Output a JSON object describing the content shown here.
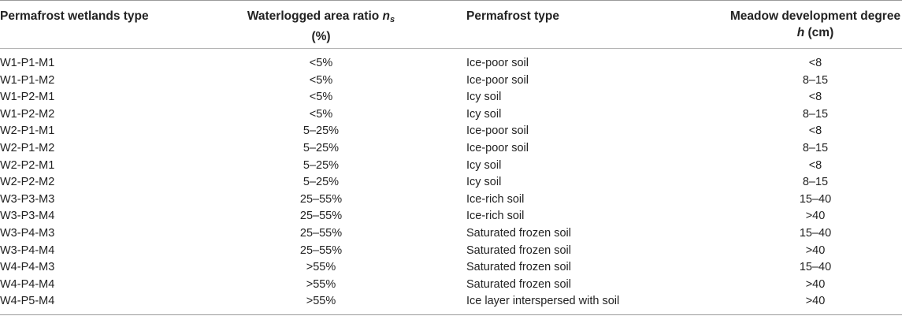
{
  "table": {
    "headers": {
      "col1": "Permafrost wetlands type",
      "col2_line1": "Waterlogged area ratio ",
      "col2_symbol": "n",
      "col2_subscript": "s",
      "col2_line2": "(%)",
      "col3": "Permafrost type",
      "col4_line1": "Meadow development degree",
      "col4_symbol": "h",
      "col4_unit": " (cm)"
    },
    "rows": [
      {
        "type": "W1-P1-M1",
        "ratio": "<5%",
        "permafrost": "Ice-poor soil",
        "meadow": "<8"
      },
      {
        "type": "W1-P1-M2",
        "ratio": "<5%",
        "permafrost": "Ice-poor soil",
        "meadow": "8–15"
      },
      {
        "type": "W1-P2-M1",
        "ratio": "<5%",
        "permafrost": "Icy soil",
        "meadow": "<8"
      },
      {
        "type": "W1-P2-M2",
        "ratio": "<5%",
        "permafrost": "Icy soil",
        "meadow": "8–15"
      },
      {
        "type": "W2-P1-M1",
        "ratio": "5–25%",
        "permafrost": "Ice-poor soil",
        "meadow": "<8"
      },
      {
        "type": "W2-P1-M2",
        "ratio": "5–25%",
        "permafrost": "Ice-poor soil",
        "meadow": "8–15"
      },
      {
        "type": "W2-P2-M1",
        "ratio": "5–25%",
        "permafrost": "Icy soil",
        "meadow": "<8"
      },
      {
        "type": "W2-P2-M2",
        "ratio": "5–25%",
        "permafrost": "Icy soil",
        "meadow": "8–15"
      },
      {
        "type": "W3-P3-M3",
        "ratio": "25–55%",
        "permafrost": "Ice-rich soil",
        "meadow": "15–40"
      },
      {
        "type": "W3-P3-M4",
        "ratio": "25–55%",
        "permafrost": "Ice-rich soil",
        "meadow": ">40"
      },
      {
        "type": "W3-P4-M3",
        "ratio": "25–55%",
        "permafrost": "Saturated frozen soil",
        "meadow": "15–40"
      },
      {
        "type": "W3-P4-M4",
        "ratio": "25–55%",
        "permafrost": "Saturated frozen soil",
        "meadow": ">40"
      },
      {
        "type": "W4-P4-M3",
        "ratio": ">55%",
        "permafrost": "Saturated frozen soil",
        "meadow": "15–40"
      },
      {
        "type": "W4-P4-M4",
        "ratio": ">55%",
        "permafrost": "Saturated frozen soil",
        "meadow": ">40"
      },
      {
        "type": "W4-P5-M4",
        "ratio": ">55%",
        "permafrost": "Ice layer interspersed with soil",
        "meadow": ">40"
      }
    ]
  }
}
